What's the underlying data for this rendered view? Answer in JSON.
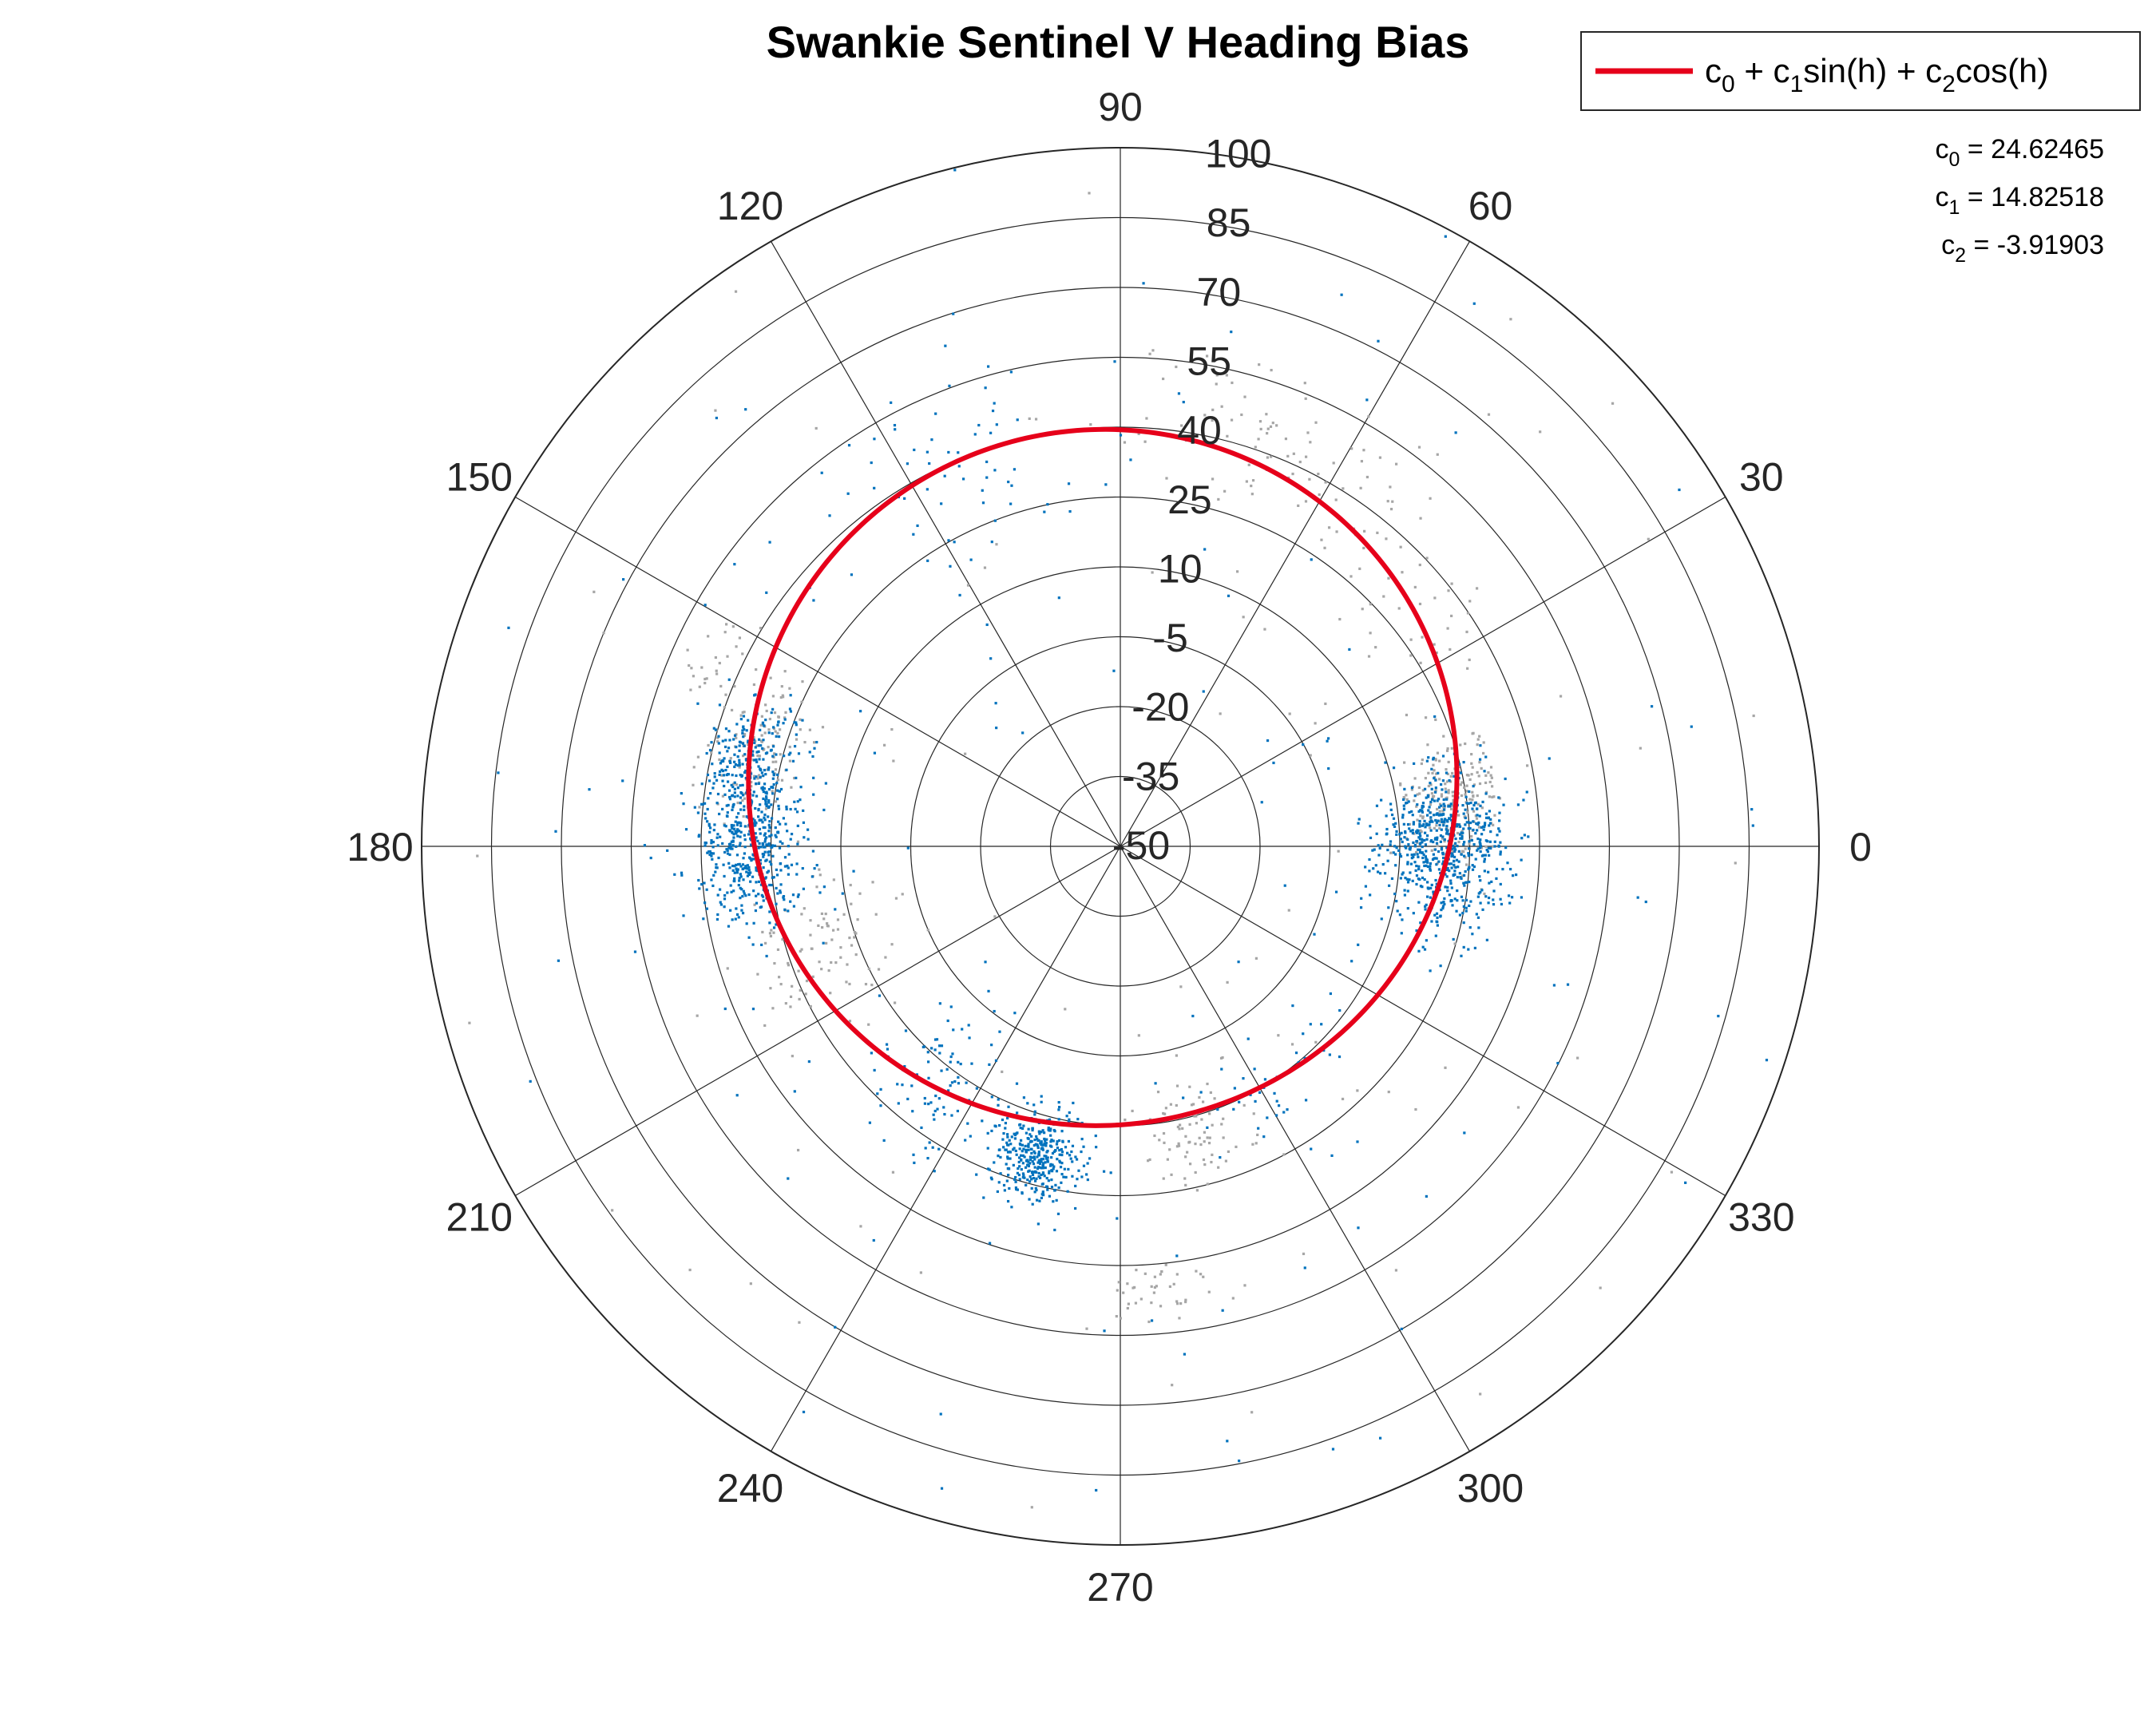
{
  "chart_data": {
    "type": "scatter",
    "subtype": "polar",
    "title": "Swankie Sentinel V Heading Bias",
    "theta_ticks": [
      "0",
      "30",
      "60",
      "90",
      "120",
      "150",
      "180",
      "210",
      "240",
      "270",
      "300",
      "330"
    ],
    "r_ticks": [
      "-50",
      "-35",
      "-20",
      "-5",
      "10",
      "25",
      "40",
      "55",
      "70",
      "85",
      "100"
    ],
    "rlim": [
      -50,
      100
    ],
    "theta_zero": "right",
    "theta_direction": "counterclockwise",
    "grid": true,
    "legend": {
      "placement": "top-right",
      "entries": [
        {
          "parts": [
            "c",
            "0",
            " + c",
            "1",
            "sin(h) + c",
            "2",
            "cos(h)"
          ]
        }
      ]
    },
    "annotations": [
      {
        "base": "c",
        "sub": "0",
        "rest": " = 24.62465"
      },
      {
        "base": "c",
        "sub": "1",
        "rest": " = 14.82518"
      },
      {
        "base": "c",
        "sub": "2",
        "rest": " = -3.91903"
      }
    ],
    "fit": {
      "c0": 24.62465,
      "c1": 14.82518,
      "c2": -3.91903
    },
    "scatter_series": [
      {
        "color": "#0072BD",
        "clusters": [
          {
            "heading": 0,
            "bias": 20,
            "sd_heading": 7,
            "sd_bias": 7,
            "count": 650
          },
          {
            "heading": 180,
            "bias": 30,
            "sd_heading": 6,
            "sd_bias": 6,
            "count": 480
          },
          {
            "heading": 167,
            "bias": 32,
            "sd_heading": 5,
            "sd_bias": 5,
            "count": 220
          },
          {
            "heading": 255,
            "bias": 19,
            "sd_heading": 4,
            "sd_bias": 5,
            "count": 380
          },
          {
            "heading": 232,
            "bias": 14,
            "sd_heading": 8,
            "sd_bias": 8,
            "count": 90
          },
          {
            "heading": 115,
            "bias": 40,
            "sd_heading": 12,
            "sd_bias": 8,
            "count": 60
          },
          {
            "heading": 300,
            "bias": 10,
            "sd_heading": 15,
            "sd_bias": 8,
            "count": 40
          }
        ],
        "scatter_count": 130,
        "scatter_range": [
          -20,
          100
        ]
      },
      {
        "color": "#A6A6A6",
        "clusters": [
          {
            "heading": 8,
            "bias": 22,
            "sd_heading": 6,
            "sd_bias": 6,
            "count": 220
          },
          {
            "heading": 165,
            "bias": 31,
            "sd_heading": 5,
            "sd_bias": 5,
            "count": 130
          },
          {
            "heading": 198,
            "bias": 18,
            "sd_heading": 6,
            "sd_bias": 8,
            "count": 90
          },
          {
            "heading": 285,
            "bias": 13,
            "sd_heading": 6,
            "sd_bias": 6,
            "count": 80
          },
          {
            "heading": 275,
            "bias": 46,
            "sd_heading": 3,
            "sd_bias": 3,
            "count": 40
          },
          {
            "heading": 155,
            "bias": 46,
            "sd_heading": 3,
            "sd_bias": 3,
            "count": 25
          },
          {
            "heading": 72,
            "bias": 45,
            "sd_heading": 10,
            "sd_bias": 8,
            "count": 80
          },
          {
            "heading": 40,
            "bias": 30,
            "sd_heading": 12,
            "sd_bias": 8,
            "count": 50
          }
        ],
        "scatter_count": 90,
        "scatter_range": [
          -20,
          100
        ]
      }
    ],
    "colors": {
      "fit_line": "#E6001A",
      "blue_points": "#0072BD",
      "gray_points": "#A6A6A6",
      "grid": "#262626"
    }
  }
}
